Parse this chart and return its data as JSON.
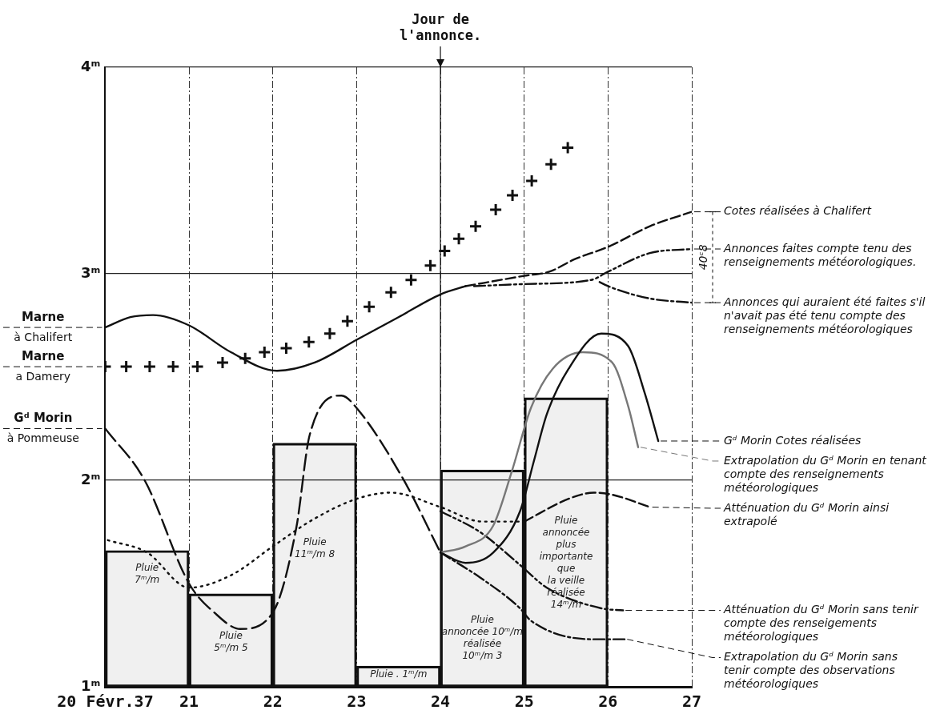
{
  "chart_data": {
    "type": "line",
    "xlim": [
      20,
      27
    ],
    "ylim": [
      1,
      4
    ],
    "xticks": [
      {
        "value": 20,
        "label": "20 Févr.37"
      },
      21,
      22,
      23,
      24,
      25,
      26,
      27
    ],
    "yticks": [
      {
        "value": 1,
        "label": "1ᵐ"
      },
      {
        "value": 2,
        "label": "2ᵐ"
      },
      {
        "value": 3,
        "label": "3ᵐ"
      },
      {
        "value": 4,
        "label": "4ᵐ"
      }
    ],
    "grid": true,
    "legend": "right",
    "marker": "none",
    "series": [
      {
        "type": "bar",
        "color": "#111111",
        "x": [
          20.5,
          21.5,
          22.5,
          23.5,
          24.5,
          25.5
        ],
        "base": [
          1,
          1,
          1,
          1,
          1,
          1
        ],
        "values": [
          0.66,
          0.45,
          1.18,
          0.1,
          1.05,
          1.4
        ],
        "value_labels": [
          "Pluie\n7ᵐ/m",
          "Pluie\n5ᵐ/m 5",
          "Pluie\n11ᵐ/m 8",
          "Pluie . 1ᵐ/m",
          "Pluie\nannoncée 10ᵐ/m\nréalisée\n10ᵐ/m 3",
          "Pluie\nannoncée\nplus\nimportante\nque\nla veille\nréalisée\n14ᵐ/m"
        ]
      },
      {
        "name": "Marne\nà Chalifert",
        "color": "#111111",
        "line_style": "solid",
        "x": [
          20,
          20.3,
          20.57,
          21,
          21.5,
          22.05,
          22.5,
          23,
          23.5,
          24,
          24.3
        ],
        "values": [
          2.74,
          2.79,
          2.8,
          2.75,
          2.62,
          2.53,
          2.57,
          2.68,
          2.79,
          2.9,
          2.94
        ]
      },
      {
        "name": "Cotes réalisées à Chalifert",
        "color": "#111111",
        "line_style": "dashed",
        "x": [
          24.3,
          25,
          25.3,
          25.6,
          26,
          26.5,
          27
        ],
        "values": [
          2.94,
          2.99,
          3.01,
          3.07,
          3.13,
          3.23,
          3.3
        ]
      },
      {
        "name": "Annonces faites compte tenu des renseignements météorologiques.",
        "color": "#111111",
        "line_style": "dashed",
        "x": [
          24.4,
          25,
          25.8,
          26,
          26.5,
          27
        ],
        "values": [
          2.94,
          2.95,
          2.97,
          3.01,
          3.1,
          3.12
        ]
      },
      {
        "name": "Annonces qui auraient été faites s'il n'avait pas été tenu compte des renseignements météorologiques",
        "color": "#111111",
        "line_style": "dashed",
        "x": [
          25.9,
          26,
          26.5,
          27
        ],
        "values": [
          2.96,
          2.94,
          2.88,
          2.86
        ]
      },
      {
        "name": "Gᵈ Morin\nà Pommeuse",
        "color": "#111111",
        "line_style": "dashed",
        "x": [
          20,
          20.47,
          21,
          21.3,
          21.61,
          22,
          22.28,
          22.44,
          22.82,
          23,
          23.55,
          24
        ],
        "values": [
          2.25,
          2,
          1.5,
          1.36,
          1.28,
          1.36,
          1.77,
          2.22,
          2.41,
          2.35,
          2.01,
          1.65
        ]
      },
      {
        "color": "#111111",
        "line_style": "dotted",
        "x": [
          20.03,
          20.5,
          21,
          21.5,
          22,
          22.48,
          23,
          23.41,
          24,
          24.5,
          25
        ],
        "values": [
          1.71,
          1.65,
          1.48,
          1.54,
          1.68,
          1.81,
          1.91,
          1.94,
          1.87,
          1.8,
          1.8
        ]
      },
      {
        "name": "Gᵈ Morin Cotes réalisées",
        "color": "#111111",
        "line_style": "solid",
        "x": [
          24,
          24.3,
          24.63,
          24.95,
          25.12,
          25.27,
          25.53,
          25.92,
          26.24,
          26.44,
          26.6
        ],
        "values": [
          1.65,
          1.6,
          1.65,
          1.85,
          2.1,
          2.32,
          2.54,
          2.71,
          2.65,
          2.42,
          2.19
        ]
      },
      {
        "name": "Extrapolation du Gᵈ Morin en tenant compte des renseignements météorologiques",
        "color": "#777777",
        "line_style": "solid",
        "x": [
          24,
          24.3,
          24.63,
          24.85,
          25.08,
          25.34,
          25.7,
          26.05,
          26.24,
          26.36
        ],
        "values": [
          1.65,
          1.68,
          1.78,
          2.04,
          2.35,
          2.54,
          2.62,
          2.57,
          2.36,
          2.16
        ]
      },
      {
        "name": "Atténuation du Gᵈ Morin ainsi extrapolé",
        "color": "#111111",
        "line_style": "dashed",
        "x": [
          25,
          25.53,
          25.83,
          26.05,
          26.5
        ],
        "values": [
          1.8,
          1.91,
          1.94,
          1.93,
          1.87
        ]
      },
      {
        "name": "Atténuation du Gᵈ Morin sans tenir compte des renseigements météorologiques",
        "color": "#111111",
        "line_style": "dashed",
        "x": [
          24,
          24.47,
          24.95,
          25.27,
          25.92,
          26.18
        ],
        "values": [
          1.85,
          1.75,
          1.59,
          1.48,
          1.38,
          1.37
        ]
      },
      {
        "name": "Extrapolation du Gᵈ Morin sans tenir compte des observations météorologiques",
        "color": "#111111",
        "line_style": "dashed",
        "x": [
          24,
          24.47,
          24.95,
          25.08,
          25.83,
          26.2
        ],
        "values": [
          1.65,
          1.53,
          1.38,
          1.32,
          1.23,
          1.23
        ]
      },
      {
        "type": "scatter",
        "name": "Marne\na Damery",
        "marker": "cross",
        "color": "#111111",
        "x": [
          20,
          20.25,
          20.53,
          20.81,
          21.1,
          21.4,
          21.67,
          21.9,
          22.16,
          22.43,
          22.68,
          22.89,
          23.15,
          23.41,
          23.65,
          23.88,
          24.05,
          24.22,
          24.42,
          24.66,
          24.86,
          25.09,
          25.32,
          25.52
        ],
        "values": [
          2.55,
          2.55,
          2.55,
          2.55,
          2.55,
          2.57,
          2.59,
          2.62,
          2.64,
          2.67,
          2.71,
          2.77,
          2.84,
          2.91,
          2.97,
          3.04,
          3.11,
          3.17,
          3.23,
          3.31,
          3.38,
          3.45,
          3.53,
          3.61
        ]
      }
    ],
    "ref_lines": [
      {
        "axis": "x",
        "value": 24,
        "label": "Jour de\nl'annonce."
      }
    ],
    "annotations": [
      "40ᶜ8"
    ]
  }
}
